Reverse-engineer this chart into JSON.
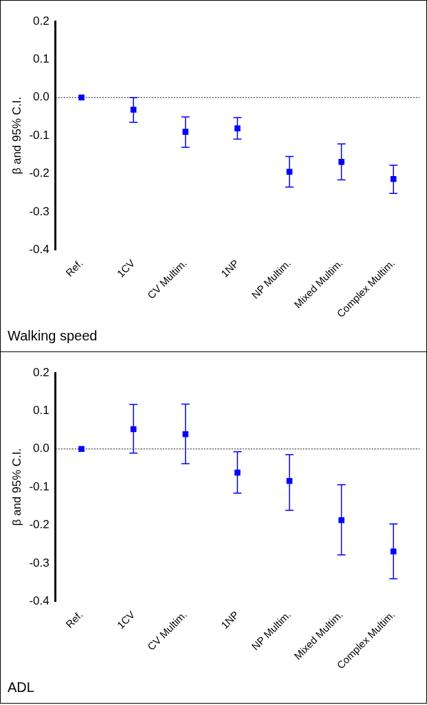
{
  "chart_data": [
    {
      "type": "scatter",
      "title": "Walking speed",
      "ylabel": "β and 95% C.I.",
      "categories": [
        "Ref.",
        "1CV",
        "CV Multim.",
        "1NP",
        "NP Multim.",
        "Mixed Multim.",
        "Complex Multim."
      ],
      "series": [
        {
          "color": "#0000ff",
          "values": [
            0,
            -0.032,
            -0.09,
            -0.081,
            -0.195,
            -0.169,
            -0.214
          ],
          "errors": [
            null,
            [
              -0.065,
              0
            ],
            [
              -0.131,
              -0.051
            ],
            [
              -0.109,
              -0.053
            ],
            [
              -0.235,
              -0.155
            ],
            [
              -0.216,
              -0.122
            ],
            [
              -0.252,
              -0.178
            ]
          ]
        }
      ],
      "ylim": [
        -0.4,
        0.2
      ],
      "yticks": [
        {
          "value": -0.4,
          "label": "-0.4"
        },
        {
          "value": -0.3,
          "label": "-0.3"
        },
        {
          "value": -0.2,
          "label": "-0.2"
        },
        {
          "value": -0.1,
          "label": "-0.1"
        },
        {
          "value": 0,
          "label": "0.0"
        },
        {
          "value": 0.1,
          "label": "0.1"
        },
        {
          "value": 0.2,
          "label": "0.2"
        }
      ],
      "ref_lines": [
        {
          "axis": "y",
          "value": 0,
          "line_style": "dotted",
          "color": "#000000"
        }
      ],
      "marker": "square",
      "grid": false,
      "legend": false
    },
    {
      "type": "scatter",
      "title": "ADL",
      "ylabel": "β and 95% C.I.",
      "categories": [
        "Ref.",
        "1CV",
        "CV Multim.",
        "1NP",
        "NP Multim.",
        "Mixed Multim.",
        "Complex Multim."
      ],
      "series": [
        {
          "color": "#0000ff",
          "values": [
            0,
            0.052,
            0.039,
            -0.062,
            -0.084,
            -0.187,
            -0.269
          ],
          "errors": [
            null,
            [
              -0.011,
              0.117
            ],
            [
              -0.039,
              0.118
            ],
            [
              -0.116,
              -0.007
            ],
            [
              -0.161,
              -0.015
            ],
            [
              -0.278,
              -0.094
            ],
            [
              -0.341,
              -0.197
            ]
          ]
        }
      ],
      "ylim": [
        -0.4,
        0.2
      ],
      "yticks": [
        {
          "value": -0.4,
          "label": "-0.4"
        },
        {
          "value": -0.3,
          "label": "-0.3"
        },
        {
          "value": -0.2,
          "label": "-0.2"
        },
        {
          "value": -0.1,
          "label": "-0.1"
        },
        {
          "value": 0,
          "label": "0.0"
        },
        {
          "value": 0.1,
          "label": "0.1"
        },
        {
          "value": 0.2,
          "label": "0.2"
        }
      ],
      "ref_lines": [
        {
          "axis": "y",
          "value": 0,
          "line_style": "dotted",
          "color": "#000000"
        }
      ],
      "marker": "square",
      "grid": false,
      "legend": false
    }
  ]
}
